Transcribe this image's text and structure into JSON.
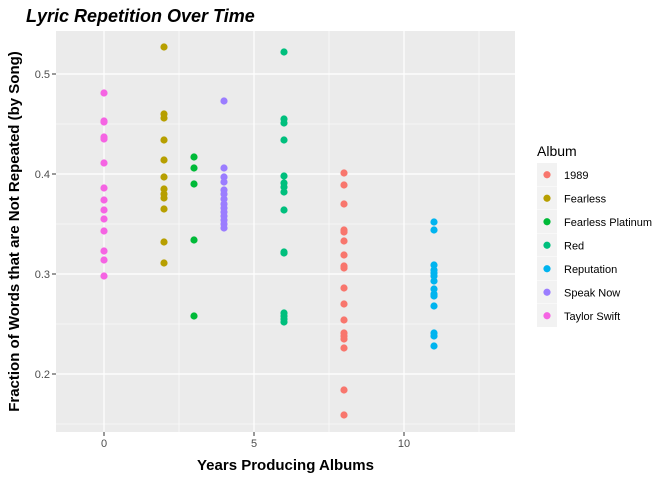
{
  "chart_data": {
    "type": "scatter",
    "title": "Lyric Repetition Over Time",
    "xlabel": "Years Producing Albums",
    "ylabel": "Fraction of Words that are Not Repeated (by Song)",
    "xlim": [
      -1.6,
      13.7
    ],
    "ylim": [
      0.142,
      0.543
    ],
    "x_ticks": [
      0,
      5,
      10
    ],
    "y_ticks": [
      0.2,
      0.3,
      0.4,
      0.5
    ],
    "x_tick_labels": [
      "0",
      "5",
      "10"
    ],
    "y_tick_labels": [
      "0.2",
      "0.3",
      "0.4",
      "0.5"
    ],
    "grid": true,
    "legend": {
      "title": "Album",
      "position": "right"
    },
    "series": [
      {
        "name": "1989",
        "color": "#F8766D",
        "x": 8,
        "values": [
          0.401,
          0.389,
          0.37,
          0.344,
          0.342,
          0.333,
          0.319,
          0.308,
          0.306,
          0.286,
          0.27,
          0.254,
          0.241,
          0.238,
          0.235,
          0.226,
          0.184,
          0.159
        ]
      },
      {
        "name": "Fearless",
        "color": "#B79F00",
        "x": 2,
        "values": [
          0.527,
          0.46,
          0.456,
          0.434,
          0.414,
          0.397,
          0.385,
          0.38,
          0.376,
          0.365,
          0.332,
          0.311
        ]
      },
      {
        "name": "Fearless Platinum",
        "color": "#00BA38",
        "x": 3,
        "values": [
          0.417,
          0.406,
          0.39,
          0.334,
          0.258
        ]
      },
      {
        "name": "Red",
        "color": "#00BF7D",
        "x": 6,
        "values": [
          0.522,
          0.455,
          0.451,
          0.434,
          0.398,
          0.391,
          0.387,
          0.382,
          0.364,
          0.322,
          0.321,
          0.261,
          0.258,
          0.255,
          0.252
        ]
      },
      {
        "name": "Reputation",
        "color": "#00B4EF",
        "x": 11,
        "values": [
          0.352,
          0.344,
          0.309,
          0.304,
          0.301,
          0.298,
          0.293,
          0.285,
          0.28,
          0.278,
          0.268,
          0.241,
          0.238,
          0.228
        ]
      },
      {
        "name": "Speak Now",
        "color": "#9B7DFF",
        "x": 4,
        "values": [
          0.473,
          0.406,
          0.397,
          0.392,
          0.384,
          0.38,
          0.375,
          0.37,
          0.366,
          0.362,
          0.358,
          0.354,
          0.35,
          0.346
        ]
      },
      {
        "name": "Taylor Swift",
        "color": "#F564E3",
        "x": 0,
        "values": [
          0.481,
          0.453,
          0.452,
          0.437,
          0.435,
          0.411,
          0.386,
          0.374,
          0.364,
          0.355,
          0.343,
          0.323,
          0.314,
          0.298
        ]
      }
    ]
  }
}
